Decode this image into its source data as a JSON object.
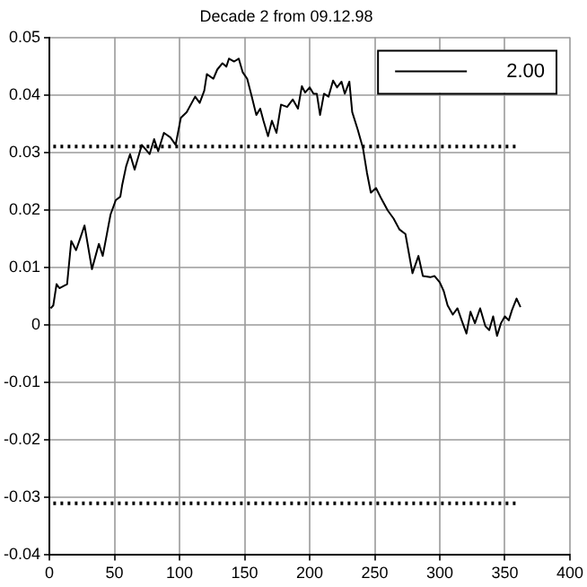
{
  "chart_data": {
    "type": "line",
    "title": "Decade 2 from 09.12.98",
    "grid": true,
    "legend": "top right",
    "line_style": "solid",
    "marker": "none",
    "xlim": [
      0,
      400
    ],
    "xticks": [
      0,
      50,
      100,
      150,
      200,
      250,
      300,
      350,
      400
    ],
    "ylim": [
      -0.04,
      0.05
    ],
    "yticks": [
      -0.04,
      -0.03,
      -0.02,
      -0.01,
      0,
      0.01,
      0.02,
      0.03,
      0.04,
      0.05
    ],
    "series": [
      {
        "name": "2.00",
        "color": "#000000",
        "x": [
          1,
          3,
          5.5,
          7.7,
          13.6,
          16.8,
          20.5,
          23.6,
          27,
          32.7,
          38,
          41,
          44,
          47,
          51,
          54.5,
          56,
          59,
          62,
          65.5,
          71,
          77,
          80.5,
          83.6,
          88,
          93,
          97,
          101,
          105.5,
          112,
          115.5,
          119,
          121,
          126,
          129,
          133,
          136,
          138,
          142,
          145.5,
          148.6,
          152,
          155.5,
          159,
          162,
          164.5,
          168,
          171,
          174.5,
          178,
          182.7,
          187,
          191,
          194,
          196.5,
          200,
          203,
          205.5,
          208,
          211,
          214.5,
          218,
          221,
          224.5,
          227,
          230.5,
          232.7,
          237,
          241,
          244,
          247,
          251,
          254.5,
          260,
          264.5,
          269,
          273.6,
          279,
          283.6,
          287,
          292.7,
          296,
          300,
          303,
          306,
          310,
          313.6,
          316.8,
          320.5,
          323.6,
          327,
          331,
          335,
          338,
          341,
          344,
          347,
          350,
          353,
          355.5,
          359,
          362
        ],
        "values": [
          0.0029,
          0.0034,
          0.0071,
          0.0064,
          0.0071,
          0.0146,
          0.013,
          0.015,
          0.0173,
          0.0097,
          0.0141,
          0.012,
          0.0156,
          0.0192,
          0.0217,
          0.0223,
          0.0244,
          0.0276,
          0.0297,
          0.027,
          0.0313,
          0.0297,
          0.0323,
          0.0302,
          0.0334,
          0.0326,
          0.0313,
          0.036,
          0.037,
          0.0397,
          0.0386,
          0.0407,
          0.0436,
          0.0428,
          0.0444,
          0.0455,
          0.0449,
          0.0463,
          0.0458,
          0.0463,
          0.0439,
          0.0428,
          0.0397,
          0.0365,
          0.0376,
          0.0355,
          0.0328,
          0.0355,
          0.0334,
          0.0383,
          0.0379,
          0.0392,
          0.0376,
          0.0415,
          0.0404,
          0.0413,
          0.0402,
          0.0402,
          0.0365,
          0.0402,
          0.0397,
          0.0425,
          0.0413,
          0.0423,
          0.0402,
          0.0423,
          0.037,
          0.0339,
          0.0307,
          0.0265,
          0.023,
          0.0238,
          0.0222,
          0.0199,
          0.0185,
          0.0166,
          0.0158,
          0.009,
          0.012,
          0.0085,
          0.0083,
          0.0085,
          0.0074,
          0.0059,
          0.0034,
          0.0018,
          0.0029,
          0.0008,
          -0.0015,
          0.0023,
          0.0003,
          0.0029,
          -0.0002,
          -0.0009,
          0.0015,
          -0.0019,
          0.0003,
          0.0015,
          0.0008,
          0.0026,
          0.0046,
          0.0031
        ]
      },
      {
        "color": "#000000",
        "line_style": "dotted",
        "x": [
          3,
          361
        ],
        "values": [
          0.031,
          0.031
        ]
      },
      {
        "color": "#000000",
        "line_style": "dotted",
        "x": [
          3,
          361
        ],
        "values": [
          -0.031,
          -0.031
        ]
      }
    ]
  }
}
